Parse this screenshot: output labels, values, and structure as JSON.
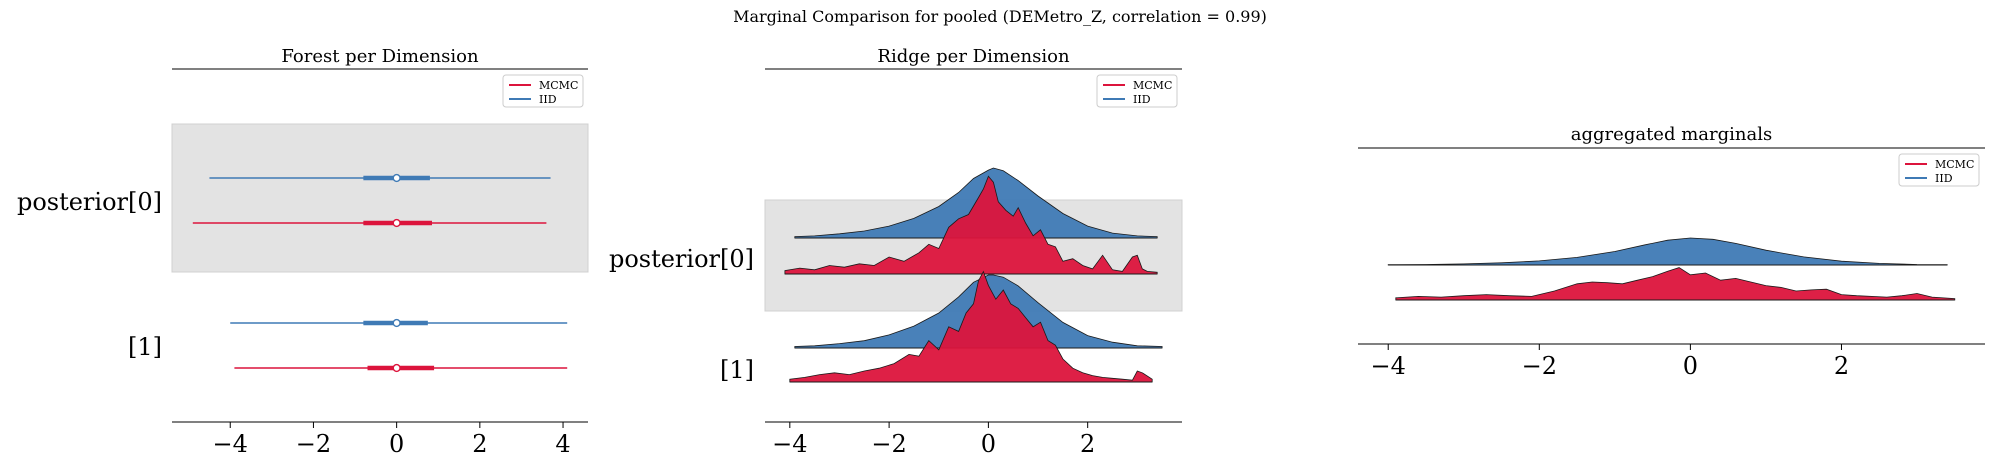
{
  "suptitle": "Marginal Comparison for pooled (DEMetro_Z, correlation = 0.99)",
  "colors": {
    "mcmc": "#dc143c",
    "iid": "#3f7ab5",
    "band": "#e3e3e3"
  },
  "chart_data": [
    {
      "type": "forest",
      "title": "Forest per Dimension",
      "xlim": [
        -5.4,
        4.6
      ],
      "xticks": [
        -4,
        -2,
        0,
        2,
        4
      ],
      "xtick_labels": [
        "−4",
        "−2",
        "0",
        "2",
        "4"
      ],
      "row_labels": [
        "posterior[0]",
        "[1]"
      ],
      "legend": [
        "MCMC",
        "IID"
      ],
      "legend_loc": "upper right",
      "rows": [
        {
          "label": "posterior[0]",
          "series": [
            {
              "name": "IID",
              "min": -4.5,
              "q25": -0.8,
              "median": 0.0,
              "q75": 0.8,
              "max": 3.7
            },
            {
              "name": "MCMC",
              "min": -4.9,
              "q25": -0.8,
              "median": 0.0,
              "q75": 0.85,
              "max": 3.6
            }
          ]
        },
        {
          "label": "[1]",
          "series": [
            {
              "name": "IID",
              "min": -4.0,
              "q25": -0.8,
              "median": 0.0,
              "q75": 0.75,
              "max": 4.1
            },
            {
              "name": "MCMC",
              "min": -3.9,
              "q25": -0.7,
              "median": 0.0,
              "q75": 0.9,
              "max": 4.1
            }
          ]
        }
      ]
    },
    {
      "type": "ridge",
      "title": "Ridge per Dimension",
      "xlim": [
        -4.5,
        3.9
      ],
      "xticks": [
        -4,
        -2,
        0,
        2
      ],
      "xtick_labels": [
        "−4",
        "−2",
        "0",
        "2"
      ],
      "row_labels": [
        "posterior[0]",
        "[1]"
      ],
      "legend": [
        "MCMC",
        "IID"
      ],
      "legend_loc": "upper right",
      "rows": [
        {
          "label": "posterior[0]",
          "iid": {
            "x": [
              -3.9,
              -3.5,
              -3.0,
              -2.5,
              -2.0,
              -1.5,
              -1.0,
              -0.6,
              -0.3,
              0.0,
              0.1,
              0.3,
              0.6,
              1.0,
              1.5,
              2.0,
              2.5,
              3.0,
              3.4
            ],
            "y": [
              0.02,
              0.03,
              0.06,
              0.1,
              0.17,
              0.28,
              0.45,
              0.65,
              0.85,
              0.97,
              1.0,
              0.96,
              0.82,
              0.6,
              0.35,
              0.17,
              0.07,
              0.03,
              0.02
            ]
          },
          "mcmc": {
            "x": [
              -4.1,
              -3.8,
              -3.5,
              -3.2,
              -2.9,
              -2.6,
              -2.3,
              -2.0,
              -1.7,
              -1.4,
              -1.2,
              -1.0,
              -0.8,
              -0.6,
              -0.4,
              -0.2,
              -0.1,
              0.0,
              0.1,
              0.2,
              0.35,
              0.5,
              0.6,
              0.75,
              0.9,
              1.05,
              1.2,
              1.35,
              1.5,
              1.7,
              1.9,
              2.1,
              2.3,
              2.5,
              2.7,
              2.9,
              3.0,
              3.1,
              3.2,
              3.4
            ],
            "y": [
              0.04,
              0.07,
              0.05,
              0.1,
              0.08,
              0.12,
              0.1,
              0.2,
              0.15,
              0.25,
              0.35,
              0.3,
              0.55,
              0.65,
              0.7,
              0.9,
              1.0,
              1.15,
              1.08,
              0.85,
              0.75,
              0.68,
              0.78,
              0.6,
              0.45,
              0.52,
              0.35,
              0.32,
              0.15,
              0.18,
              0.1,
              0.06,
              0.22,
              0.05,
              0.03,
              0.2,
              0.22,
              0.06,
              0.03,
              0.02
            ]
          }
        },
        {
          "label": "[1]",
          "iid": {
            "x": [
              -3.9,
              -3.5,
              -3.0,
              -2.5,
              -2.0,
              -1.5,
              -1.0,
              -0.6,
              -0.3,
              0.0,
              0.1,
              0.3,
              0.6,
              1.0,
              1.5,
              2.0,
              2.5,
              3.0,
              3.5
            ],
            "y": [
              0.02,
              0.03,
              0.06,
              0.1,
              0.18,
              0.3,
              0.48,
              0.7,
              0.9,
              1.0,
              1.0,
              0.97,
              0.85,
              0.62,
              0.35,
              0.17,
              0.08,
              0.03,
              0.02
            ]
          },
          "mcmc": {
            "x": [
              -4.0,
              -3.7,
              -3.4,
              -3.1,
              -2.8,
              -2.5,
              -2.2,
              -1.9,
              -1.6,
              -1.4,
              -1.2,
              -1.0,
              -0.8,
              -0.6,
              -0.45,
              -0.3,
              -0.2,
              -0.1,
              0.0,
              0.15,
              0.3,
              0.45,
              0.6,
              0.75,
              0.9,
              1.05,
              1.2,
              1.35,
              1.5,
              1.7,
              1.9,
              2.1,
              2.3,
              2.5,
              2.7,
              2.9,
              3.0,
              3.1,
              3.3
            ],
            "y": [
              0.03,
              0.05,
              0.08,
              0.1,
              0.08,
              0.12,
              0.15,
              0.2,
              0.3,
              0.28,
              0.45,
              0.35,
              0.6,
              0.55,
              0.75,
              0.85,
              1.1,
              1.2,
              1.05,
              0.9,
              1.0,
              0.85,
              0.8,
              0.7,
              0.6,
              0.65,
              0.45,
              0.4,
              0.25,
              0.15,
              0.1,
              0.07,
              0.05,
              0.04,
              0.03,
              0.02,
              0.12,
              0.1,
              0.03
            ]
          }
        }
      ]
    },
    {
      "type": "ridge",
      "title": "aggregated marginals",
      "xlim": [
        -4.4,
        3.9
      ],
      "xticks": [
        -4,
        -2,
        0,
        2
      ],
      "xtick_labels": [
        "−4",
        "−2",
        "0",
        "2"
      ],
      "legend": [
        "MCMC",
        "IID"
      ],
      "legend_loc": "upper right",
      "rows": [
        {
          "label": "",
          "iid": {
            "x": [
              -4.0,
              -3.5,
              -3.0,
              -2.5,
              -2.0,
              -1.5,
              -1.0,
              -0.6,
              -0.3,
              0.0,
              0.3,
              0.6,
              1.0,
              1.5,
              2.0,
              2.5,
              3.0,
              3.4
            ],
            "y": [
              0.01,
              0.02,
              0.04,
              0.08,
              0.15,
              0.28,
              0.5,
              0.75,
              0.92,
              1.0,
              0.95,
              0.8,
              0.55,
              0.3,
              0.14,
              0.06,
              0.02,
              0.01
            ]
          },
          "mcmc": {
            "x": [
              -3.9,
              -3.6,
              -3.3,
              -3.0,
              -2.7,
              -2.4,
              -2.1,
              -1.8,
              -1.5,
              -1.3,
              -1.1,
              -0.9,
              -0.7,
              -0.5,
              -0.3,
              -0.15,
              0.0,
              0.2,
              0.4,
              0.6,
              0.8,
              1.0,
              1.2,
              1.4,
              1.6,
              1.8,
              2.0,
              2.2,
              2.4,
              2.6,
              2.8,
              3.0,
              3.2,
              3.5
            ],
            "y": [
              0.06,
              0.1,
              0.08,
              0.12,
              0.15,
              0.12,
              0.1,
              0.25,
              0.45,
              0.5,
              0.48,
              0.45,
              0.55,
              0.65,
              0.8,
              0.9,
              0.7,
              0.75,
              0.55,
              0.6,
              0.5,
              0.4,
              0.35,
              0.25,
              0.28,
              0.3,
              0.15,
              0.12,
              0.1,
              0.08,
              0.12,
              0.18,
              0.08,
              0.04
            ]
          }
        }
      ]
    }
  ]
}
